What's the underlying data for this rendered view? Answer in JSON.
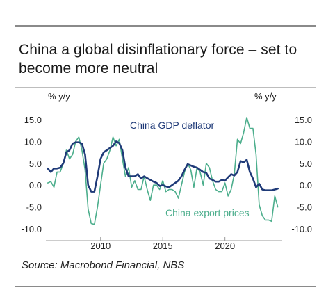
{
  "title": "China a global disinflationary force – set to become more neutral",
  "source": "Source: Macrobond Financial, NBS",
  "chart_data": {
    "type": "line",
    "left_axis_label": "% y/y",
    "right_axis_label": "% y/y",
    "y_ticks": [
      "15.0",
      "10.0",
      "5.0",
      "0.0",
      "-5.0",
      "-10.0"
    ],
    "y_tick_values": [
      15,
      10,
      5,
      0,
      -5,
      -10
    ],
    "x_ticks": [
      "2010",
      "2015",
      "2020"
    ],
    "x_tick_values": [
      2010,
      2015,
      2020
    ],
    "xlim": [
      2005.6,
      2024.6
    ],
    "ylim": [
      -10,
      15
    ],
    "grid": false,
    "series": [
      {
        "name": "China GDP deflator",
        "color": "#1f3a78",
        "x": [
          2005.75,
          2006.0,
          2006.25,
          2006.5,
          2006.75,
          2007.0,
          2007.25,
          2007.5,
          2007.75,
          2008.0,
          2008.25,
          2008.5,
          2008.75,
          2009.0,
          2009.25,
          2009.5,
          2009.75,
          2010.0,
          2010.25,
          2010.5,
          2010.75,
          2011.0,
          2011.25,
          2011.5,
          2011.75,
          2012.0,
          2012.25,
          2012.5,
          2012.75,
          2013.0,
          2013.25,
          2013.5,
          2013.75,
          2014.0,
          2014.25,
          2014.5,
          2014.75,
          2015.0,
          2015.25,
          2015.5,
          2015.75,
          2016.0,
          2016.25,
          2016.5,
          2016.75,
          2017.0,
          2017.25,
          2017.5,
          2017.75,
          2018.0,
          2018.25,
          2018.5,
          2018.75,
          2019.0,
          2019.25,
          2019.5,
          2019.75,
          2020.0,
          2020.25,
          2020.5,
          2020.75,
          2021.0,
          2021.25,
          2021.5,
          2021.75,
          2022.0,
          2022.25,
          2022.5,
          2022.75,
          2023.0,
          2023.25,
          2023.5,
          2023.75,
          2024.0,
          2024.25
        ],
        "values": [
          3.8,
          3.0,
          3.8,
          3.8,
          4.0,
          5.0,
          7.5,
          8.0,
          9.5,
          9.8,
          9.8,
          9.5,
          7.0,
          0.0,
          -1.5,
          -1.5,
          2.0,
          6.0,
          7.5,
          8.0,
          8.5,
          9.0,
          10.0,
          9.6,
          8.0,
          4.0,
          2.0,
          2.0,
          2.0,
          2.5,
          1.5,
          2.0,
          1.6,
          1.2,
          0.8,
          0.5,
          -0.2,
          0.0,
          -0.3,
          -0.5,
          0.0,
          0.5,
          1.0,
          2.0,
          3.5,
          4.8,
          4.5,
          4.2,
          4.0,
          3.5,
          3.0,
          2.8,
          1.5,
          1.2,
          0.8,
          0.8,
          1.2,
          1.0,
          1.8,
          2.5,
          2.2,
          3.0,
          5.5,
          5.2,
          5.8,
          3.0,
          1.5,
          -0.5,
          0.3,
          -1.0,
          -1.2,
          -1.2,
          -1.2,
          -1.0,
          -0.8
        ]
      },
      {
        "name": "China export prices",
        "color": "#4cae8c",
        "x": [
          2005.75,
          2006.0,
          2006.25,
          2006.5,
          2006.75,
          2007.0,
          2007.25,
          2007.5,
          2007.75,
          2008.0,
          2008.25,
          2008.5,
          2008.75,
          2009.0,
          2009.25,
          2009.5,
          2009.75,
          2010.0,
          2010.25,
          2010.5,
          2010.75,
          2011.0,
          2011.25,
          2011.5,
          2011.75,
          2012.0,
          2012.25,
          2012.5,
          2012.75,
          2013.0,
          2013.25,
          2013.5,
          2013.75,
          2014.0,
          2014.25,
          2014.5,
          2014.75,
          2015.0,
          2015.25,
          2015.5,
          2015.75,
          2016.0,
          2016.25,
          2016.5,
          2016.75,
          2017.0,
          2017.25,
          2017.5,
          2017.75,
          2018.0,
          2018.25,
          2018.5,
          2018.75,
          2019.0,
          2019.25,
          2019.5,
          2019.75,
          2020.0,
          2020.25,
          2020.5,
          2020.75,
          2021.0,
          2021.25,
          2021.5,
          2021.75,
          2022.0,
          2022.25,
          2022.5,
          2022.75,
          2023.0,
          2023.25,
          2023.5,
          2023.75,
          2024.0,
          2024.25
        ],
        "values": [
          0.5,
          0.8,
          -0.5,
          3.0,
          3.0,
          5.0,
          8.0,
          6.0,
          7.0,
          10.0,
          11.0,
          8.0,
          3.5,
          -5.5,
          -8.8,
          -9.0,
          -5.0,
          0.0,
          5.0,
          6.0,
          8.0,
          11.0,
          9.0,
          10.5,
          6.0,
          2.0,
          4.0,
          -0.5,
          1.0,
          -1.0,
          -1.0,
          2.0,
          -1.0,
          -3.5,
          0.0,
          0.0,
          -1.0,
          1.0,
          -1.5,
          -1.0,
          -1.0,
          -1.5,
          -3.0,
          0.0,
          3.0,
          5.0,
          3.5,
          -0.5,
          4.0,
          3.0,
          0.0,
          5.0,
          4.0,
          1.0,
          -1.0,
          -1.5,
          -1.5,
          0.5,
          -2.5,
          -1.0,
          2.5,
          10.5,
          9.5,
          12.0,
          15.5,
          13.0,
          13.0,
          7.0,
          -4.5,
          -7.0,
          -8.0,
          -8.0,
          -8.3,
          -2.5,
          -5.0
        ]
      }
    ],
    "annotations": [
      {
        "text": "China GDP deflator",
        "series": 0
      },
      {
        "text": "China export prices",
        "series": 1
      }
    ]
  }
}
